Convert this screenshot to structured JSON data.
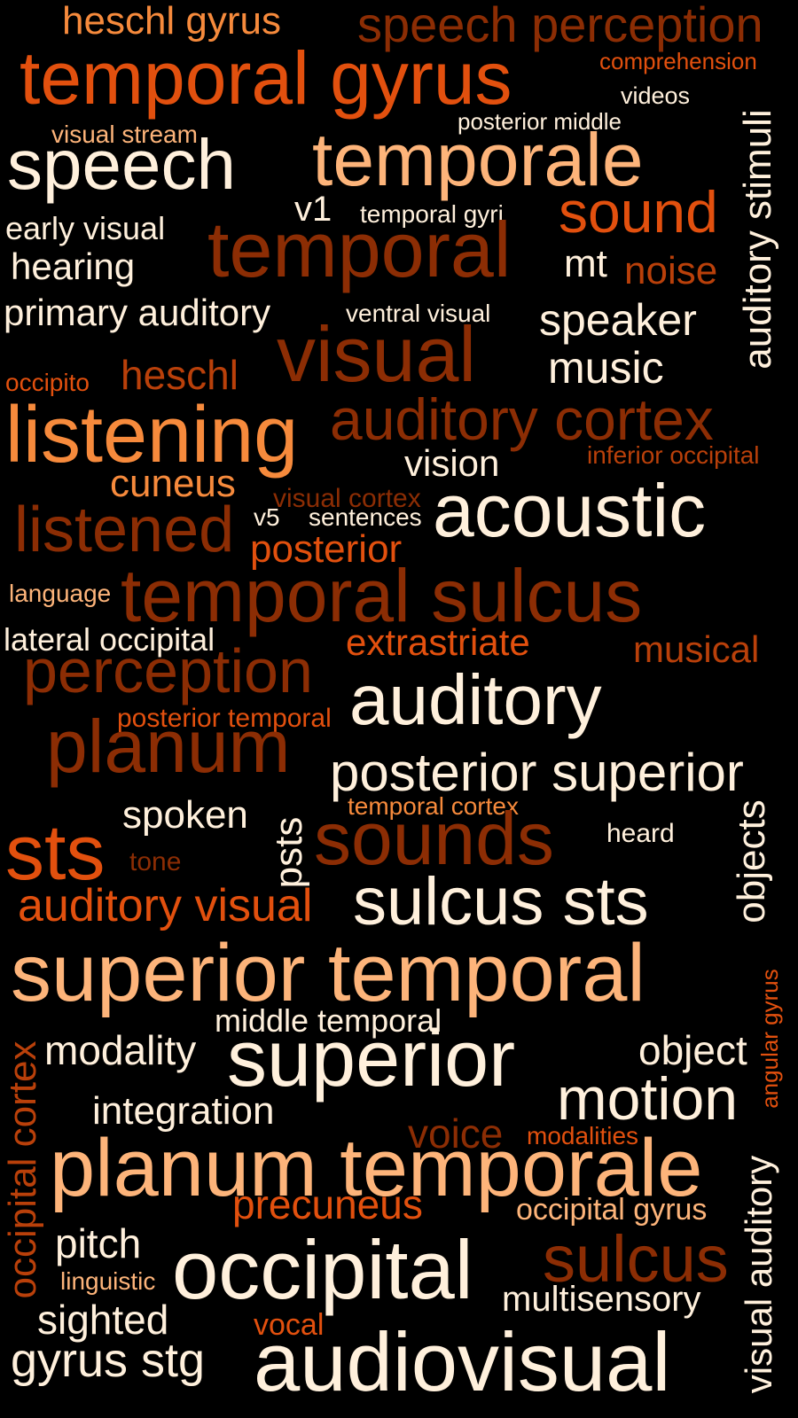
{
  "palette": {
    "cream": "#FFF0DC",
    "light_orange": "#FDB47A",
    "orange": "#F68A3C",
    "dark_orange": "#E2500E",
    "burnt": "#B9400A",
    "brown": "#8C2D04",
    "background": "#000000"
  },
  "words": [
    {
      "text": "heschl gyrus",
      "color": "#F68A3C",
      "weight": 0.55,
      "rotation": 0
    },
    {
      "text": "speech perception",
      "color": "#8C2D04",
      "weight": 0.7,
      "rotation": 0
    },
    {
      "text": "temporal gyrus",
      "color": "#E2500E",
      "weight": 0.95,
      "rotation": 0
    },
    {
      "text": "comprehension",
      "color": "#E2500E",
      "weight": 0.35,
      "rotation": 0
    },
    {
      "text": "videos",
      "color": "#FFF0DC",
      "weight": 0.35,
      "rotation": 0
    },
    {
      "text": "posterior middle",
      "color": "#FFF0DC",
      "weight": 0.35,
      "rotation": 0
    },
    {
      "text": "visual stream",
      "color": "#FDB47A",
      "weight": 0.35,
      "rotation": 0
    },
    {
      "text": "speech",
      "color": "#FFF0DC",
      "weight": 0.95,
      "rotation": 0
    },
    {
      "text": "temporale",
      "color": "#FDB47A",
      "weight": 0.95,
      "rotation": 0
    },
    {
      "text": "auditory stimuli",
      "color": "#FFF0DC",
      "weight": 0.55,
      "rotation": -90
    },
    {
      "text": "v1",
      "color": "#FFF0DC",
      "weight": 0.45,
      "rotation": 0
    },
    {
      "text": "temporal gyri",
      "color": "#FFF0DC",
      "weight": 0.35,
      "rotation": 0
    },
    {
      "text": "sound",
      "color": "#E2500E",
      "weight": 0.75,
      "rotation": 0
    },
    {
      "text": "early visual",
      "color": "#FFF0DC",
      "weight": 0.45,
      "rotation": 0
    },
    {
      "text": "temporal",
      "color": "#8C2D04",
      "weight": 1.0,
      "rotation": 0
    },
    {
      "text": "mt",
      "color": "#FFF0DC",
      "weight": 0.5,
      "rotation": 0
    },
    {
      "text": "hearing",
      "color": "#FFF0DC",
      "weight": 0.55,
      "rotation": 0
    },
    {
      "text": "noise",
      "color": "#B9400A",
      "weight": 0.55,
      "rotation": 0
    },
    {
      "text": "primary auditory",
      "color": "#FFF0DC",
      "weight": 0.55,
      "rotation": 0
    },
    {
      "text": "ventral visual",
      "color": "#FFF0DC",
      "weight": 0.35,
      "rotation": 0
    },
    {
      "text": "speaker",
      "color": "#FFF0DC",
      "weight": 0.6,
      "rotation": 0
    },
    {
      "text": "visual",
      "color": "#8C2D04",
      "weight": 1.0,
      "rotation": 0
    },
    {
      "text": "heschl",
      "color": "#B9400A",
      "weight": 0.55,
      "rotation": 0
    },
    {
      "text": "music",
      "color": "#FFF0DC",
      "weight": 0.6,
      "rotation": 0
    },
    {
      "text": "occipito",
      "color": "#E2500E",
      "weight": 0.35,
      "rotation": 0
    },
    {
      "text": "listening",
      "color": "#F68A3C",
      "weight": 1.0,
      "rotation": 0
    },
    {
      "text": "auditory cortex",
      "color": "#8C2D04",
      "weight": 0.8,
      "rotation": 0
    },
    {
      "text": "inferior occipital",
      "color": "#B9400A",
      "weight": 0.35,
      "rotation": 0
    },
    {
      "text": "vision",
      "color": "#FFF0DC",
      "weight": 0.5,
      "rotation": 0
    },
    {
      "text": "cuneus",
      "color": "#F68A3C",
      "weight": 0.5,
      "rotation": 0
    },
    {
      "text": "visual cortex",
      "color": "#8C2D04",
      "weight": 0.35,
      "rotation": 0
    },
    {
      "text": "acoustic",
      "color": "#FFF0DC",
      "weight": 1.0,
      "rotation": 0
    },
    {
      "text": "listened",
      "color": "#8C2D04",
      "weight": 0.9,
      "rotation": 0
    },
    {
      "text": "v5",
      "color": "#FFF0DC",
      "weight": 0.35,
      "rotation": 0
    },
    {
      "text": "sentences",
      "color": "#FFF0DC",
      "weight": 0.35,
      "rotation": 0
    },
    {
      "text": "posterior",
      "color": "#E2500E",
      "weight": 0.55,
      "rotation": 0
    },
    {
      "text": "language",
      "color": "#FDB47A",
      "weight": 0.35,
      "rotation": 0
    },
    {
      "text": "temporal sulcus",
      "color": "#8C2D04",
      "weight": 1.0,
      "rotation": 0
    },
    {
      "text": "lateral occipital",
      "color": "#FFF0DC",
      "weight": 0.45,
      "rotation": 0
    },
    {
      "text": "extrastriate",
      "color": "#E2500E",
      "weight": 0.55,
      "rotation": 0
    },
    {
      "text": "musical",
      "color": "#B9400A",
      "weight": 0.5,
      "rotation": 0
    },
    {
      "text": "perception",
      "color": "#8C2D04",
      "weight": 0.85,
      "rotation": 0
    },
    {
      "text": "auditory",
      "color": "#FFF0DC",
      "weight": 1.0,
      "rotation": 0
    },
    {
      "text": "posterior temporal",
      "color": "#E2500E",
      "weight": 0.35,
      "rotation": 0
    },
    {
      "text": "planum",
      "color": "#8C2D04",
      "weight": 1.0,
      "rotation": 0
    },
    {
      "text": "posterior superior",
      "color": "#FFF0DC",
      "weight": 0.7,
      "rotation": 0
    },
    {
      "text": "temporal cortex",
      "color": "#F68A3C",
      "weight": 0.35,
      "rotation": 0
    },
    {
      "text": "spoken",
      "color": "#FFF0DC",
      "weight": 0.5,
      "rotation": 0
    },
    {
      "text": "psts",
      "color": "#FFF0DC",
      "weight": 0.5,
      "rotation": -90
    },
    {
      "text": "sounds",
      "color": "#8C2D04",
      "weight": 0.95,
      "rotation": 0
    },
    {
      "text": "heard",
      "color": "#FFF0DC",
      "weight": 0.4,
      "rotation": 0
    },
    {
      "text": "objects",
      "color": "#FFF0DC",
      "weight": 0.55,
      "rotation": -90
    },
    {
      "text": "sts",
      "color": "#E2500E",
      "weight": 1.0,
      "rotation": 0
    },
    {
      "text": "tone",
      "color": "#8C2D04",
      "weight": 0.35,
      "rotation": 0
    },
    {
      "text": "auditory visual",
      "color": "#E2500E",
      "weight": 0.6,
      "rotation": 0
    },
    {
      "text": "sulcus sts",
      "color": "#FFF0DC",
      "weight": 1.0,
      "rotation": 0
    },
    {
      "text": "superior temporal",
      "color": "#FDB47A",
      "weight": 1.0,
      "rotation": 0
    },
    {
      "text": "angular gyrus",
      "color": "#E2500E",
      "weight": 0.35,
      "rotation": -90
    },
    {
      "text": "middle temporal",
      "color": "#FFF0DC",
      "weight": 0.45,
      "rotation": 0
    },
    {
      "text": "occipital cortex",
      "color": "#B9400A",
      "weight": 0.6,
      "rotation": -90
    },
    {
      "text": "modality",
      "color": "#FFF0DC",
      "weight": 0.55,
      "rotation": 0
    },
    {
      "text": "superior",
      "color": "#FFF0DC",
      "weight": 1.0,
      "rotation": 0
    },
    {
      "text": "object",
      "color": "#FFF0DC",
      "weight": 0.55,
      "rotation": 0
    },
    {
      "text": "integration",
      "color": "#FFF0DC",
      "weight": 0.55,
      "rotation": 0
    },
    {
      "text": "motion",
      "color": "#FFF0DC",
      "weight": 0.8,
      "rotation": 0
    },
    {
      "text": "voice",
      "color": "#8C2D04",
      "weight": 0.55,
      "rotation": 0
    },
    {
      "text": "modalities",
      "color": "#E2500E",
      "weight": 0.35,
      "rotation": 0
    },
    {
      "text": "planum temporale",
      "color": "#FDB47A",
      "weight": 1.0,
      "rotation": 0
    },
    {
      "text": "visual auditory",
      "color": "#FFF0DC",
      "weight": 0.55,
      "rotation": -90
    },
    {
      "text": "precuneus",
      "color": "#E2500E",
      "weight": 0.55,
      "rotation": 0
    },
    {
      "text": "occipital gyrus",
      "color": "#FDB47A",
      "weight": 0.4,
      "rotation": 0
    },
    {
      "text": "pitch",
      "color": "#FFF0DC",
      "weight": 0.55,
      "rotation": 0
    },
    {
      "text": "sulcus",
      "color": "#8C2D04",
      "weight": 0.85,
      "rotation": 0
    },
    {
      "text": "occipital",
      "color": "#FFF0DC",
      "weight": 1.0,
      "rotation": 0
    },
    {
      "text": "linguistic",
      "color": "#FDB47A",
      "weight": 0.35,
      "rotation": 0
    },
    {
      "text": "multisensory",
      "color": "#FFF0DC",
      "weight": 0.5,
      "rotation": 0
    },
    {
      "text": "sighted",
      "color": "#FFF0DC",
      "weight": 0.55,
      "rotation": 0
    },
    {
      "text": "vocal",
      "color": "#E2500E",
      "weight": 0.45,
      "rotation": 0
    },
    {
      "text": "gyrus stg",
      "color": "#FFF0DC",
      "weight": 0.6,
      "rotation": 0
    },
    {
      "text": "audiovisual",
      "color": "#FFF0DC",
      "weight": 1.0,
      "rotation": 0
    }
  ]
}
